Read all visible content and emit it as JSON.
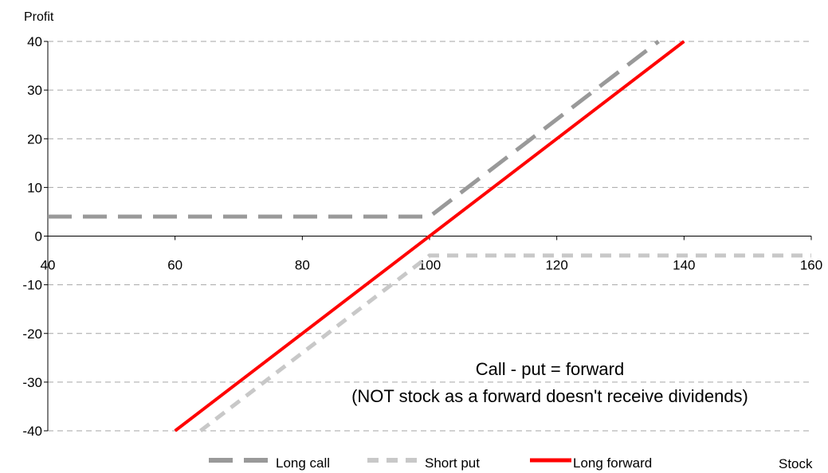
{
  "chart_data": {
    "type": "line",
    "title": "",
    "xlabel": "Stock",
    "ylabel": "Profit",
    "xlim": [
      40,
      160
    ],
    "ylim": [
      -40,
      40
    ],
    "x_ticks": [
      "40",
      "60",
      "80",
      "100",
      "120",
      "140",
      "160"
    ],
    "y_ticks": [
      "40",
      "30",
      "20",
      "10",
      "0",
      "-10",
      "-20",
      "-30",
      "-40"
    ],
    "grid": "horizontal dashed",
    "legend_position": "bottom",
    "series": [
      {
        "name": "Long call",
        "color": "#999999",
        "style": "long-dash",
        "x": [
          40,
          100,
          136
        ],
        "y": [
          4,
          4,
          40
        ]
      },
      {
        "name": "Short put",
        "color": "#c8c8c8",
        "style": "short-dash",
        "x": [
          64,
          100,
          160
        ],
        "y": [
          -40,
          -4,
          -4
        ]
      },
      {
        "name": "Long forward",
        "color": "#ff0000",
        "style": "solid",
        "x": [
          60,
          140
        ],
        "y": [
          -40,
          40
        ]
      }
    ],
    "annotation": {
      "line1": "Call - put = forward",
      "line2": "(NOT stock as a forward doesn't receive dividends)"
    }
  }
}
